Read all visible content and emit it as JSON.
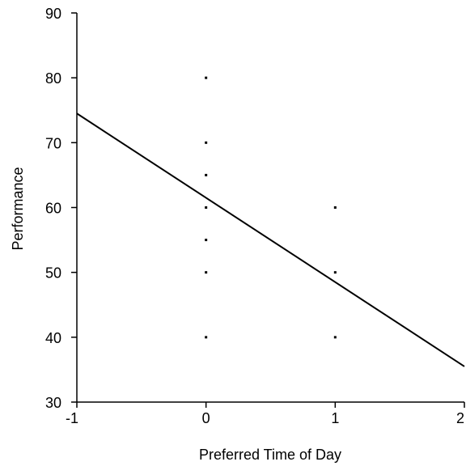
{
  "chart_data": {
    "type": "scatter",
    "title": "",
    "xlabel": "Preferred Time of Day",
    "ylabel": "Performance",
    "xlim": [
      -1,
      2
    ],
    "ylim": [
      30,
      90
    ],
    "x_ticks": [
      -1,
      0,
      1,
      2
    ],
    "y_ticks": [
      30,
      40,
      50,
      60,
      70,
      80,
      90
    ],
    "x_tick_labels": [
      "-1",
      "0",
      "1",
      "2"
    ],
    "y_tick_labels": [
      "30",
      "40",
      "50",
      "60",
      "70",
      "80",
      "90"
    ],
    "grid": false,
    "legend": "none",
    "points": [
      {
        "x": 0,
        "y": 80
      },
      {
        "x": 0,
        "y": 70
      },
      {
        "x": 0,
        "y": 65
      },
      {
        "x": 0,
        "y": 60
      },
      {
        "x": 0,
        "y": 55
      },
      {
        "x": 0,
        "y": 50
      },
      {
        "x": 0,
        "y": 40
      },
      {
        "x": 1,
        "y": 60
      },
      {
        "x": 1,
        "y": 50
      },
      {
        "x": 1,
        "y": 40
      }
    ],
    "fit_line": {
      "x": [
        -1,
        2
      ],
      "y": [
        74.5,
        35.5
      ]
    },
    "colors": {
      "ink": "#000000",
      "background": "#ffffff"
    }
  }
}
